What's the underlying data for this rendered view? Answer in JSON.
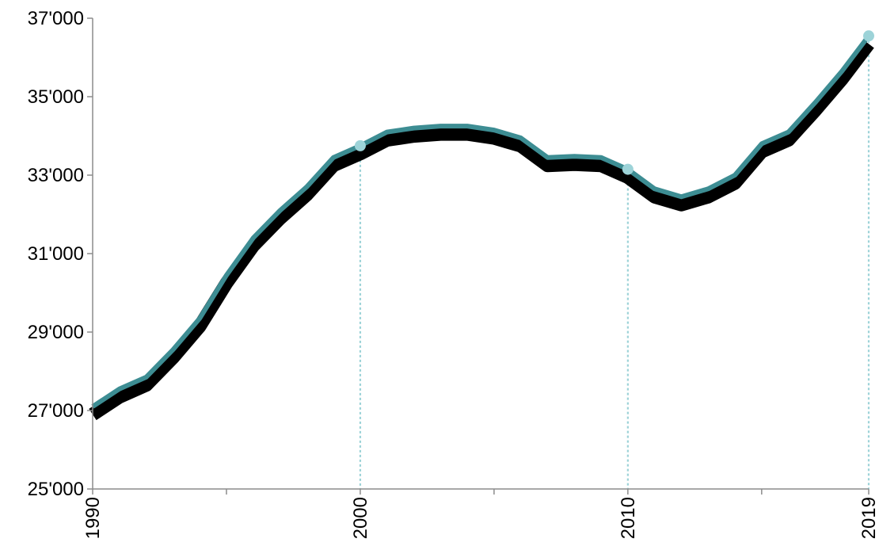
{
  "chart_data": {
    "type": "line",
    "title": "",
    "xlabel": "",
    "ylabel": "",
    "xlim": [
      1990,
      2019
    ],
    "ylim": [
      25000,
      37000
    ],
    "y_ticks": [
      25000,
      27000,
      29000,
      31000,
      33000,
      35000,
      37000
    ],
    "y_tick_labels": [
      "25'000",
      "27'000",
      "29'000",
      "31'000",
      "33'000",
      "35'000",
      "37'000"
    ],
    "x_ticks": [
      1990,
      1995,
      2000,
      2005,
      2010,
      2015,
      2019
    ],
    "x_tick_labels": [
      "1990",
      "2000",
      "2010",
      "2019"
    ],
    "x_labeled_ticks": [
      1990,
      2000,
      2010,
      2019
    ],
    "grid": false,
    "legend": "none",
    "x": [
      1990,
      1991,
      1992,
      1993,
      1994,
      1995,
      1996,
      1997,
      1998,
      1999,
      2000,
      2001,
      2002,
      2003,
      2004,
      2005,
      2006,
      2007,
      2008,
      2009,
      2010,
      2011,
      2012,
      2013,
      2014,
      2015,
      2016,
      2017,
      2018,
      2019
    ],
    "series": [
      {
        "values": [
          27100,
          27550,
          27850,
          28550,
          29350,
          30450,
          31400,
          32100,
          32700,
          33450,
          33750,
          34100,
          34200,
          34250,
          34250,
          34150,
          33950,
          33450,
          33480,
          33450,
          33150,
          32650,
          32450,
          32650,
          33000,
          33800,
          34100,
          34850,
          35650,
          36550
        ],
        "color": "#3d8d93",
        "shadow_color": "#000000"
      }
    ],
    "highlighted_points": [
      {
        "x": 2000,
        "y": 33750
      },
      {
        "x": 2010,
        "y": 33150
      },
      {
        "x": 2019,
        "y": 36550
      }
    ],
    "highlight_color": "#9dd3d8"
  }
}
